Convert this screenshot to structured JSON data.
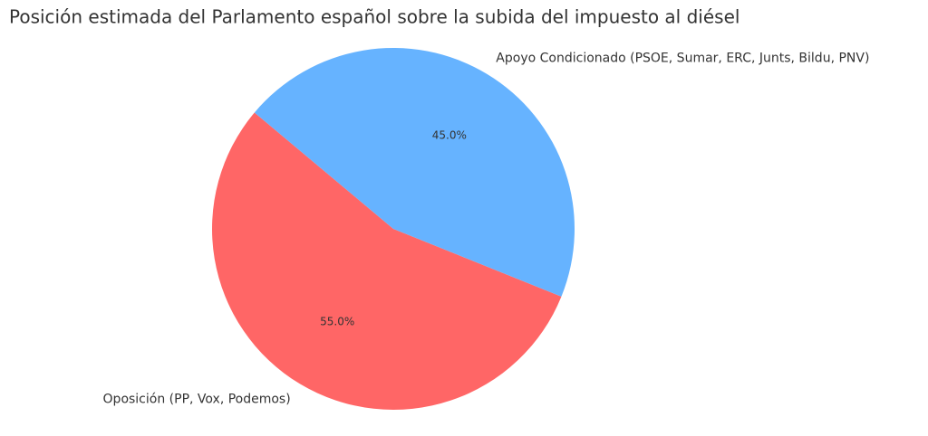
{
  "chart_data": {
    "type": "pie",
    "title": "Posición estimada del Parlamento español sobre la subida del impuesto al diésel",
    "categories": [
      "Oposición (PP, Vox, Podemos)",
      "Apoyo Condicionado (PSOE, Sumar, ERC, Junts, Bildu, PNV)"
    ],
    "values": [
      55,
      45
    ],
    "value_labels": [
      "55.0%",
      "45.0%"
    ],
    "colors": [
      "#ff6666",
      "#66b3ff"
    ]
  }
}
